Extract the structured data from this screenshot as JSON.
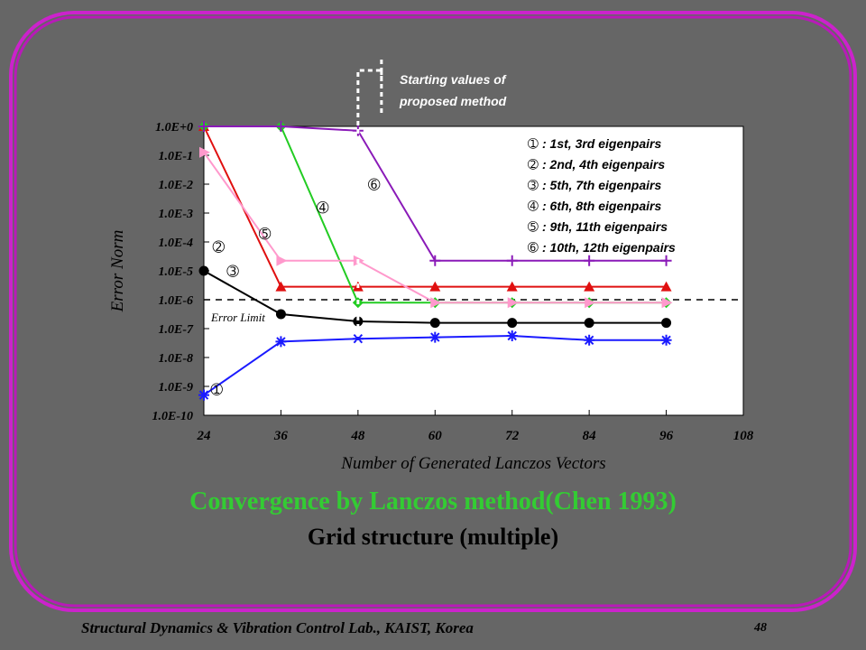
{
  "slide": {
    "title": "Convergence by Lanczos method(Chen 1993)",
    "subtitle": "Grid structure (multiple)",
    "footer": "Structural Dynamics & Vibration Control Lab., KAIST, Korea",
    "page_number": "48",
    "colors": {
      "background": "#666666",
      "frame": "#cc22cc",
      "title": "#33cc33"
    }
  },
  "chart_data": {
    "type": "line",
    "xlabel": "Number of Generated Lanczos Vectors",
    "ylabel": "Error Norm",
    "x_ticks": [
      "24",
      "36",
      "48",
      "60",
      "72",
      "84",
      "96",
      "108"
    ],
    "y_ticks": [
      "1.0E+0",
      "1.0E-1",
      "1.0E-2",
      "1.0E-3",
      "1.0E-4",
      "1.0E-5",
      "1.0E-6",
      "1.0E-7",
      "1.0E-8",
      "1.0E-9",
      "1.0E-10"
    ],
    "xlim": [
      24,
      108
    ],
    "ylim_log10": [
      -10,
      0
    ],
    "y_scale": "log",
    "grid": false,
    "error_limit": {
      "label": "Error Limit",
      "value": 1e-06
    },
    "starting_values_annotation": {
      "text": [
        "Starting values of",
        "proposed method"
      ],
      "x": 48
    },
    "legend": [
      {
        "marker": "➀",
        "text": ": 1st, 3rd eigenpairs"
      },
      {
        "marker": "➁",
        "text": ": 2nd, 4th eigenpairs"
      },
      {
        "marker": "➂",
        "text": ": 5th, 7th eigenpairs"
      },
      {
        "marker": "➃",
        "text": ": 6th, 8th eigenpairs"
      },
      {
        "marker": "➄",
        "text": ": 9th, 11th eigenpairs"
      },
      {
        "marker": "➅",
        "text": ": 10th, 12th eigenpairs"
      }
    ],
    "series": [
      {
        "label": "➀",
        "color": "#1a1aff",
        "marker": "star",
        "x": [
          24,
          36,
          48,
          60,
          72,
          84,
          96
        ],
        "log10_y": [
          -9.3,
          -7.45,
          -7.35,
          -7.3,
          -7.25,
          -7.4,
          -7.4
        ]
      },
      {
        "label": "➁",
        "color": "#e01010",
        "marker": "triangle",
        "x": [
          24,
          36,
          48,
          60,
          72,
          84,
          96
        ],
        "log10_y": [
          0,
          -5.55,
          -5.55,
          -5.55,
          -5.55,
          -5.55,
          -5.55
        ]
      },
      {
        "label": "➂",
        "color": "#000000",
        "marker": "circle",
        "x": [
          24,
          36,
          48,
          60,
          72,
          84,
          96
        ],
        "log10_y": [
          -5.0,
          -6.5,
          -6.75,
          -6.8,
          -6.8,
          -6.8,
          -6.8
        ]
      },
      {
        "label": "➃",
        "color": "#22cc22",
        "marker": "diamond",
        "x": [
          24,
          36,
          48,
          60,
          72,
          84,
          96
        ],
        "log10_y": [
          0,
          0,
          -6.1,
          -6.1,
          -6.1,
          -6.1,
          -6.1
        ]
      },
      {
        "label": "➄",
        "color": "#ff99cc",
        "marker": "triangle-right",
        "x": [
          24,
          36,
          48,
          60,
          72,
          84,
          96
        ],
        "log10_y": [
          -0.9,
          -4.65,
          -4.65,
          -6.1,
          -6.1,
          -6.1,
          -6.1
        ]
      },
      {
        "label": "➅",
        "color": "#8a1ab8",
        "marker": "plus",
        "x": [
          24,
          36,
          48,
          60,
          72,
          84,
          96
        ],
        "log10_y": [
          0,
          0,
          -0.15,
          -4.65,
          -4.65,
          -4.65,
          -4.65
        ]
      }
    ],
    "series_labels_on_plot": [
      {
        "text": "➀",
        "x": 26,
        "log10_y": -9.1
      },
      {
        "text": "➁",
        "x": 26.3,
        "log10_y": -4.15
      },
      {
        "text": "➂",
        "x": 28.5,
        "log10_y": -5.0
      },
      {
        "text": "➃",
        "x": 42.5,
        "log10_y": -2.8
      },
      {
        "text": "➄",
        "x": 33.5,
        "log10_y": -3.7
      },
      {
        "text": "➅",
        "x": 50.5,
        "log10_y": -2.0
      }
    ]
  }
}
